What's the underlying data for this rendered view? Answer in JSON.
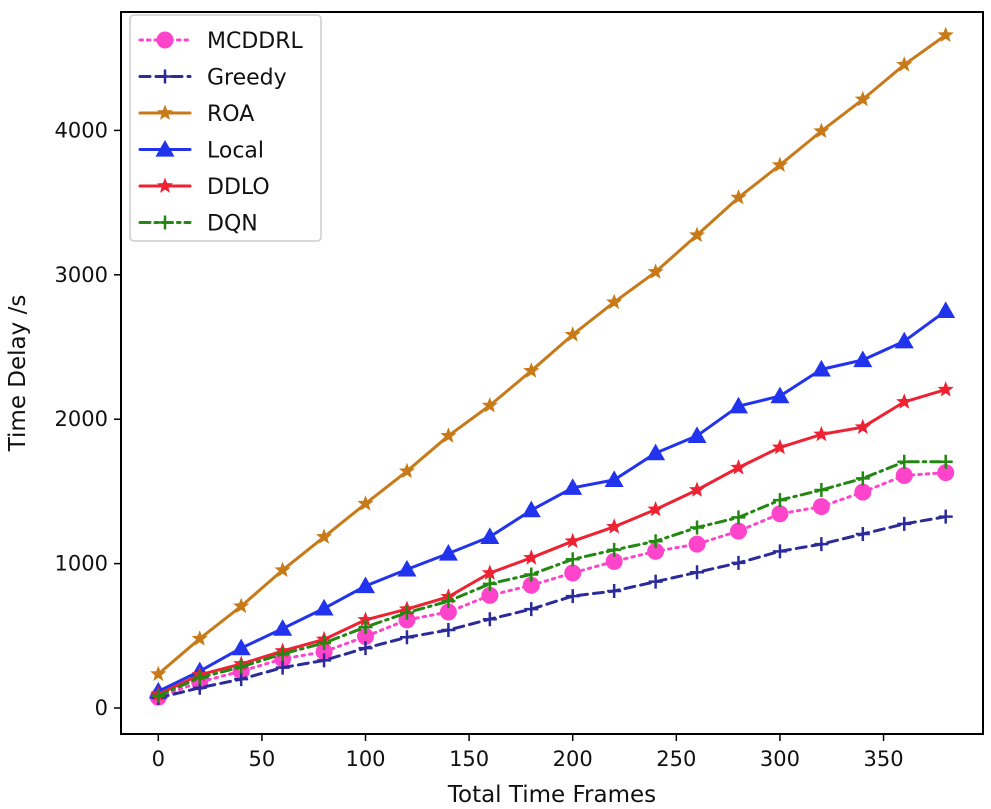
{
  "chart_data": {
    "type": "line",
    "title": "",
    "xlabel": "Total Time Frames",
    "ylabel": "Time Delay /s",
    "xlim": [
      -18,
      398
    ],
    "ylim": [
      -180,
      4820
    ],
    "xticks": [
      0,
      50,
      100,
      150,
      200,
      250,
      300,
      350
    ],
    "yticks": [
      0,
      1000,
      2000,
      3000,
      4000
    ],
    "grid": false,
    "legend_position": "top-left",
    "x": [
      0,
      20,
      40,
      60,
      80,
      100,
      120,
      140,
      160,
      180,
      200,
      220,
      240,
      260,
      280,
      300,
      320,
      340,
      360,
      380
    ],
    "series": [
      {
        "name": "MCDDRL",
        "color": "#ff44cc",
        "marker": "circle",
        "linestyle": "dotted",
        "values": [
          75,
          180,
          255,
          340,
          390,
          495,
          610,
          665,
          780,
          850,
          935,
          1015,
          1085,
          1135,
          1225,
          1345,
          1395,
          1495,
          1610,
          1630
        ]
      },
      {
        "name": "Greedy",
        "color": "#2b2b99",
        "marker": "plus",
        "linestyle": "dashed",
        "values": [
          70,
          140,
          200,
          280,
          330,
          415,
          490,
          540,
          615,
          685,
          775,
          810,
          875,
          940,
          1005,
          1085,
          1135,
          1205,
          1275,
          1325
        ]
      },
      {
        "name": "ROA",
        "color": "#c87a18",
        "marker": "star",
        "linestyle": "solid",
        "values": [
          235,
          480,
          705,
          955,
          1185,
          1415,
          1640,
          1885,
          2095,
          2335,
          2585,
          2810,
          3020,
          3275,
          3535,
          3760,
          3995,
          4215,
          4455,
          4660
        ]
      },
      {
        "name": "Local",
        "color": "#2233ee",
        "marker": "triangle",
        "linestyle": "solid",
        "values": [
          115,
          255,
          415,
          550,
          690,
          845,
          960,
          1070,
          1185,
          1370,
          1525,
          1580,
          1765,
          1885,
          2090,
          2160,
          2345,
          2410,
          2540,
          2750
        ]
      },
      {
        "name": "DDLO",
        "color": "#ee2233",
        "marker": "star",
        "linestyle": "solid",
        "values": [
          95,
          230,
          305,
          395,
          475,
          610,
          685,
          770,
          935,
          1040,
          1155,
          1255,
          1375,
          1510,
          1665,
          1805,
          1895,
          1945,
          2120,
          2205
        ]
      },
      {
        "name": "DQN",
        "color": "#228811",
        "marker": "plus",
        "linestyle": "dashdot",
        "values": [
          85,
          210,
          285,
          375,
          450,
          560,
          660,
          740,
          860,
          925,
          1030,
          1095,
          1155,
          1250,
          1320,
          1440,
          1510,
          1590,
          1705,
          1705
        ]
      }
    ]
  }
}
